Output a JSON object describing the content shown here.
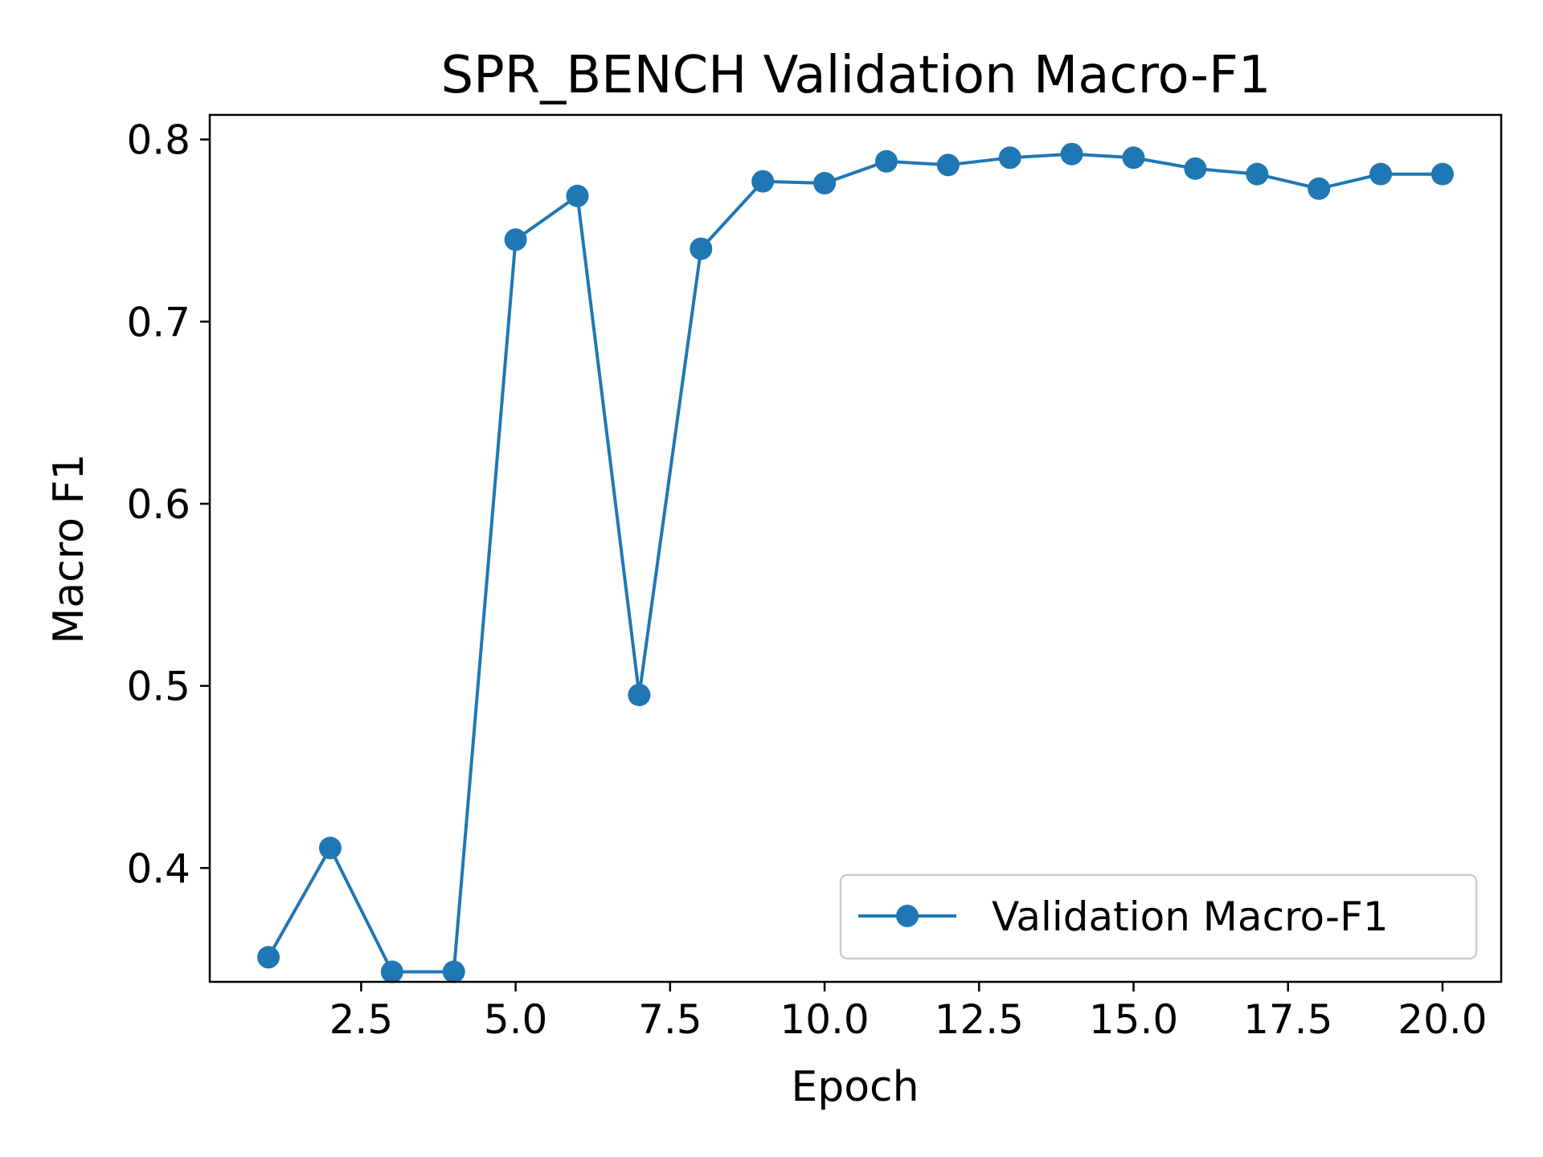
{
  "chart_data": {
    "type": "line",
    "title": "SPR_BENCH Validation Macro-F1",
    "xlabel": "Epoch",
    "ylabel": "Macro F1",
    "xlim": [
      0.05,
      20.95
    ],
    "ylim": [
      0.3375,
      0.8135
    ],
    "xticks": [
      2.5,
      5.0,
      7.5,
      10.0,
      12.5,
      15.0,
      17.5,
      20.0
    ],
    "xtick_labels": [
      "2.5",
      "5.0",
      "7.5",
      "10.0",
      "12.5",
      "15.0",
      "17.5",
      "20.0"
    ],
    "yticks": [
      0.4,
      0.5,
      0.6,
      0.7,
      0.8
    ],
    "ytick_labels": [
      "0.4",
      "0.5",
      "0.6",
      "0.7",
      "0.8"
    ],
    "grid": false,
    "legend_position": "lower-right",
    "series": [
      {
        "name": "Validation Macro-F1",
        "color": "#1f77b4",
        "marker": "circle",
        "x": [
          1,
          2,
          3,
          4,
          5,
          6,
          7,
          8,
          9,
          10,
          11,
          12,
          13,
          14,
          15,
          16,
          17,
          18,
          19,
          20
        ],
        "y": [
          0.351,
          0.411,
          0.343,
          0.343,
          0.745,
          0.769,
          0.495,
          0.74,
          0.777,
          0.776,
          0.788,
          0.786,
          0.79,
          0.792,
          0.79,
          0.784,
          0.781,
          0.773,
          0.781,
          0.781
        ]
      }
    ]
  }
}
